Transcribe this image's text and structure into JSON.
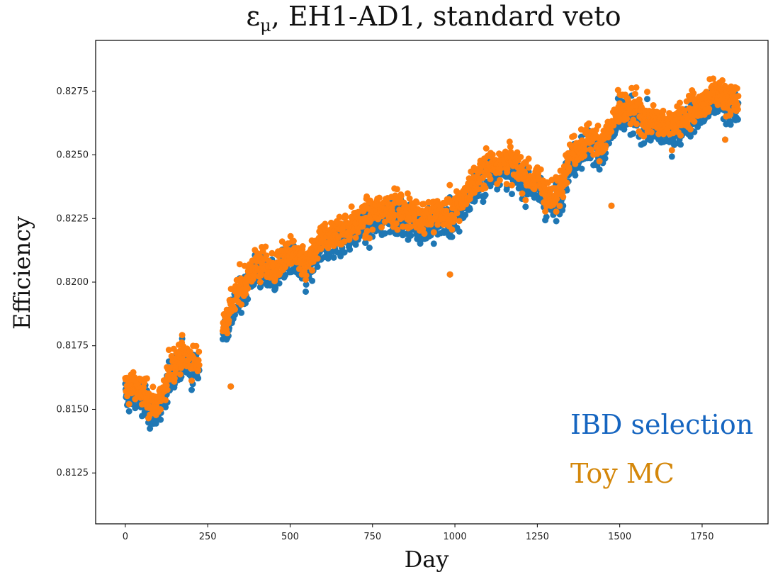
{
  "chart_data": {
    "type": "scatter",
    "title_symbol": "ε",
    "title_subscript": "μ",
    "title_rest": ", EH1-AD1, standard veto",
    "xlabel": "Day",
    "ylabel": "Efficiency",
    "xlim": [
      -90,
      1950
    ],
    "ylim": [
      0.8105,
      0.8295
    ],
    "xticks": [
      0,
      250,
      500,
      750,
      1000,
      1250,
      1500,
      1750
    ],
    "yticks": [
      0.8125,
      0.815,
      0.8175,
      0.82,
      0.8225,
      0.825,
      0.8275
    ],
    "ytick_labels": [
      "0.8125",
      "0.8150",
      "0.8175",
      "0.8200",
      "0.8225",
      "0.8250",
      "0.8275"
    ],
    "grid": false,
    "legend_placement": "bottom-right",
    "trend": [
      {
        "x": 0,
        "y": 0.8158
      },
      {
        "x": 30,
        "y": 0.816
      },
      {
        "x": 60,
        "y": 0.8155
      },
      {
        "x": 90,
        "y": 0.8152
      },
      {
        "x": 115,
        "y": 0.8155
      },
      {
        "x": 140,
        "y": 0.8168
      },
      {
        "x": 175,
        "y": 0.8172
      },
      {
        "x": 215,
        "y": 0.8168
      },
      {
        "x": 300,
        "y": 0.8185
      },
      {
        "x": 330,
        "y": 0.8193
      },
      {
        "x": 360,
        "y": 0.82
      },
      {
        "x": 400,
        "y": 0.8208
      },
      {
        "x": 450,
        "y": 0.8205
      },
      {
        "x": 500,
        "y": 0.8212
      },
      {
        "x": 550,
        "y": 0.8206
      },
      {
        "x": 600,
        "y": 0.8218
      },
      {
        "x": 700,
        "y": 0.8223
      },
      {
        "x": 800,
        "y": 0.823
      },
      {
        "x": 900,
        "y": 0.8226
      },
      {
        "x": 1000,
        "y": 0.8228
      },
      {
        "x": 1050,
        "y": 0.8238
      },
      {
        "x": 1100,
        "y": 0.8246
      },
      {
        "x": 1150,
        "y": 0.8248
      },
      {
        "x": 1200,
        "y": 0.8244
      },
      {
        "x": 1250,
        "y": 0.824
      },
      {
        "x": 1300,
        "y": 0.8232
      },
      {
        "x": 1350,
        "y": 0.825
      },
      {
        "x": 1400,
        "y": 0.8257
      },
      {
        "x": 1450,
        "y": 0.8255
      },
      {
        "x": 1500,
        "y": 0.8268
      },
      {
        "x": 1550,
        "y": 0.8268
      },
      {
        "x": 1600,
        "y": 0.8263
      },
      {
        "x": 1650,
        "y": 0.8262
      },
      {
        "x": 1700,
        "y": 0.8266
      },
      {
        "x": 1750,
        "y": 0.827
      },
      {
        "x": 1800,
        "y": 0.8275
      },
      {
        "x": 1860,
        "y": 0.827
      }
    ],
    "gaps": [
      [
        225,
        295
      ]
    ],
    "outliers": [
      {
        "x": 320,
        "y": 0.8159
      },
      {
        "x": 985,
        "y": 0.8203
      },
      {
        "x": 1475,
        "y": 0.823
      },
      {
        "x": 1820,
        "y": 0.8256
      }
    ],
    "series": [
      {
        "name": "IBD selection",
        "color": "#1f77b4",
        "offset": -0.00035
      },
      {
        "name": "Toy MC",
        "color": "#ff7f0e",
        "offset": 0.0
      }
    ],
    "legend_colors": {
      "IBD selection": "#1565c0",
      "Toy MC": "#d4870a"
    }
  }
}
